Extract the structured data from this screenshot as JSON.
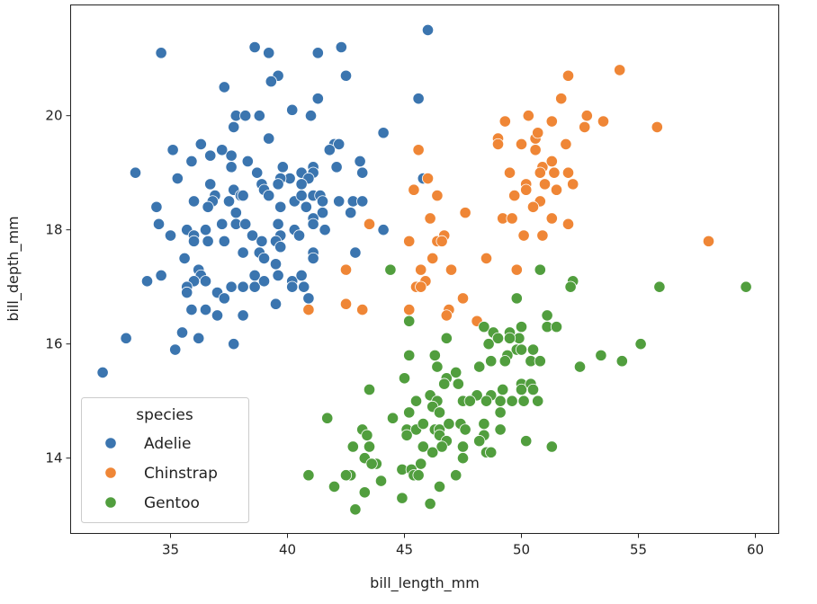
{
  "chart_data": {
    "type": "scatter",
    "title": "",
    "xlabel": "bill_length_mm",
    "ylabel": "bill_depth_mm",
    "xlim": [
      30.73,
      61.0
    ],
    "ylim": [
      12.68,
      21.94
    ],
    "xticks": [
      35,
      40,
      45,
      50,
      55,
      60
    ],
    "yticks": [
      14,
      16,
      18,
      20
    ],
    "grid": false,
    "legend": {
      "title": "species",
      "placement": "bottom-left"
    },
    "series": [
      {
        "name": "Adelie",
        "color": "#3b75af",
        "points": [
          [
            34.6,
            21.1
          ],
          [
            38.6,
            21.2
          ],
          [
            39.2,
            21.1
          ],
          [
            41.3,
            21.1
          ],
          [
            42.3,
            21.2
          ],
          [
            39.6,
            20.7
          ],
          [
            39.3,
            20.6
          ],
          [
            42.5,
            20.7
          ],
          [
            37.3,
            20.5
          ],
          [
            41.3,
            20.3
          ],
          [
            37.8,
            20.0
          ],
          [
            38.2,
            20.0
          ],
          [
            38.8,
            20.0
          ],
          [
            40.2,
            20.1
          ],
          [
            41.0,
            20.0
          ],
          [
            37.7,
            19.8
          ],
          [
            44.1,
            19.7
          ],
          [
            39.2,
            19.6
          ],
          [
            35.1,
            19.4
          ],
          [
            36.3,
            19.5
          ],
          [
            37.2,
            19.4
          ],
          [
            37.6,
            19.3
          ],
          [
            36.7,
            19.3
          ],
          [
            35.9,
            19.2
          ],
          [
            38.3,
            19.2
          ],
          [
            37.6,
            19.1
          ],
          [
            42.0,
            19.5
          ],
          [
            42.2,
            19.5
          ],
          [
            41.8,
            19.4
          ],
          [
            43.1,
            19.2
          ],
          [
            43.2,
            19.0
          ],
          [
            42.1,
            19.1
          ],
          [
            33.5,
            19.0
          ],
          [
            35.3,
            18.9
          ],
          [
            38.7,
            19.0
          ],
          [
            39.8,
            19.1
          ],
          [
            41.1,
            19.1
          ],
          [
            40.6,
            19.0
          ],
          [
            40.1,
            18.9
          ],
          [
            39.7,
            18.9
          ],
          [
            41.1,
            19.0
          ],
          [
            40.9,
            18.9
          ],
          [
            40.6,
            18.8
          ],
          [
            36.7,
            18.8
          ],
          [
            38.9,
            18.8
          ],
          [
            39.0,
            18.7
          ],
          [
            39.2,
            18.6
          ],
          [
            39.6,
            18.8
          ],
          [
            37.7,
            18.7
          ],
          [
            38.0,
            18.6
          ],
          [
            38.1,
            18.6
          ],
          [
            36.9,
            18.6
          ],
          [
            36.8,
            18.5
          ],
          [
            36.6,
            18.4
          ],
          [
            36.0,
            18.5
          ],
          [
            37.5,
            18.5
          ],
          [
            34.4,
            18.4
          ],
          [
            37.8,
            18.3
          ],
          [
            39.7,
            18.4
          ],
          [
            40.3,
            18.5
          ],
          [
            40.6,
            18.6
          ],
          [
            41.1,
            18.6
          ],
          [
            41.4,
            18.6
          ],
          [
            41.5,
            18.5
          ],
          [
            40.8,
            18.4
          ],
          [
            41.5,
            18.3
          ],
          [
            42.2,
            18.5
          ],
          [
            42.8,
            18.5
          ],
          [
            43.2,
            18.5
          ],
          [
            42.7,
            18.3
          ],
          [
            41.1,
            18.2
          ],
          [
            41.1,
            18.1
          ],
          [
            44.1,
            18.0
          ],
          [
            34.5,
            18.1
          ],
          [
            35.7,
            18.0
          ],
          [
            36.0,
            17.9
          ],
          [
            36.0,
            17.8
          ],
          [
            36.5,
            18.0
          ],
          [
            36.6,
            17.8
          ],
          [
            37.2,
            18.1
          ],
          [
            37.3,
            17.8
          ],
          [
            35.0,
            17.9
          ],
          [
            37.8,
            18.1
          ],
          [
            38.2,
            18.1
          ],
          [
            38.5,
            17.9
          ],
          [
            38.9,
            17.8
          ],
          [
            39.6,
            18.1
          ],
          [
            39.7,
            17.9
          ],
          [
            39.5,
            17.8
          ],
          [
            39.7,
            17.7
          ],
          [
            40.3,
            18.0
          ],
          [
            40.5,
            17.9
          ],
          [
            41.6,
            18.0
          ],
          [
            38.1,
            17.6
          ],
          [
            38.8,
            17.6
          ],
          [
            39.0,
            17.5
          ],
          [
            39.5,
            17.4
          ],
          [
            41.1,
            17.6
          ],
          [
            41.1,
            17.5
          ],
          [
            42.9,
            17.6
          ],
          [
            35.6,
            17.5
          ],
          [
            36.2,
            17.3
          ],
          [
            36.3,
            17.2
          ],
          [
            36.0,
            17.1
          ],
          [
            36.5,
            17.1
          ],
          [
            35.7,
            17.0
          ],
          [
            35.7,
            16.9
          ],
          [
            34.0,
            17.1
          ],
          [
            34.6,
            17.2
          ],
          [
            37.0,
            16.9
          ],
          [
            37.3,
            16.8
          ],
          [
            37.6,
            17.0
          ],
          [
            38.1,
            17.0
          ],
          [
            38.6,
            17.0
          ],
          [
            38.6,
            17.2
          ],
          [
            39.0,
            17.1
          ],
          [
            39.6,
            17.2
          ],
          [
            40.2,
            17.1
          ],
          [
            40.2,
            17.0
          ],
          [
            40.6,
            17.2
          ],
          [
            40.7,
            17.0
          ],
          [
            40.9,
            16.8
          ],
          [
            39.5,
            16.7
          ],
          [
            35.9,
            16.6
          ],
          [
            36.5,
            16.6
          ],
          [
            37.0,
            16.5
          ],
          [
            38.1,
            16.5
          ],
          [
            33.1,
            16.1
          ],
          [
            35.5,
            16.2
          ],
          [
            36.2,
            16.1
          ],
          [
            35.2,
            15.9
          ],
          [
            37.7,
            16.0
          ],
          [
            32.1,
            15.5
          ],
          [
            46.0,
            21.5
          ],
          [
            45.6,
            20.3
          ],
          [
            45.8,
            18.9
          ]
        ]
      },
      {
        "name": "Chinstrap",
        "color": "#ef8636",
        "points": [
          [
            54.2,
            20.8
          ],
          [
            52.0,
            20.7
          ],
          [
            51.7,
            20.3
          ],
          [
            52.8,
            20.0
          ],
          [
            53.5,
            19.9
          ],
          [
            52.7,
            19.8
          ],
          [
            55.8,
            19.8
          ],
          [
            49.3,
            19.9
          ],
          [
            50.3,
            20.0
          ],
          [
            51.3,
            19.9
          ],
          [
            49.0,
            19.6
          ],
          [
            49.0,
            19.5
          ],
          [
            50.0,
            19.5
          ],
          [
            50.6,
            19.6
          ],
          [
            50.7,
            19.7
          ],
          [
            50.6,
            19.4
          ],
          [
            51.9,
            19.5
          ],
          [
            45.6,
            19.4
          ],
          [
            49.5,
            19.0
          ],
          [
            50.9,
            19.1
          ],
          [
            51.3,
            19.2
          ],
          [
            50.8,
            19.0
          ],
          [
            51.4,
            19.0
          ],
          [
            52.0,
            19.0
          ],
          [
            50.2,
            18.8
          ],
          [
            50.2,
            18.7
          ],
          [
            51.0,
            18.8
          ],
          [
            51.5,
            18.7
          ],
          [
            52.2,
            18.8
          ],
          [
            49.7,
            18.6
          ],
          [
            50.8,
            18.5
          ],
          [
            50.5,
            18.4
          ],
          [
            46.0,
            18.9
          ],
          [
            45.4,
            18.7
          ],
          [
            46.4,
            18.6
          ],
          [
            47.6,
            18.3
          ],
          [
            46.1,
            18.2
          ],
          [
            49.2,
            18.2
          ],
          [
            49.6,
            18.2
          ],
          [
            51.3,
            18.2
          ],
          [
            52.0,
            18.1
          ],
          [
            50.1,
            17.9
          ],
          [
            50.9,
            17.9
          ],
          [
            58.0,
            17.8
          ],
          [
            43.5,
            18.1
          ],
          [
            45.2,
            17.8
          ],
          [
            46.4,
            17.8
          ],
          [
            46.7,
            17.9
          ],
          [
            46.6,
            17.8
          ],
          [
            46.2,
            17.5
          ],
          [
            48.5,
            17.5
          ],
          [
            42.5,
            17.3
          ],
          [
            45.7,
            17.3
          ],
          [
            47.0,
            17.3
          ],
          [
            49.8,
            17.3
          ],
          [
            45.9,
            17.1
          ],
          [
            45.5,
            17.0
          ],
          [
            45.7,
            17.0
          ],
          [
            47.5,
            16.8
          ],
          [
            46.9,
            16.6
          ],
          [
            46.8,
            16.5
          ],
          [
            48.1,
            16.4
          ],
          [
            40.9,
            16.6
          ],
          [
            42.5,
            16.7
          ],
          [
            43.2,
            16.6
          ],
          [
            45.2,
            16.6
          ]
        ]
      },
      {
        "name": "Gentoo",
        "color": "#519e3e",
        "points": [
          [
            44.4,
            17.3
          ],
          [
            50.8,
            17.3
          ],
          [
            52.2,
            17.1
          ],
          [
            52.1,
            17.0
          ],
          [
            55.9,
            17.0
          ],
          [
            59.6,
            17.0
          ],
          [
            49.8,
            16.8
          ],
          [
            45.2,
            16.4
          ],
          [
            51.1,
            16.5
          ],
          [
            51.1,
            16.3
          ],
          [
            51.5,
            16.3
          ],
          [
            48.4,
            16.3
          ],
          [
            48.8,
            16.2
          ],
          [
            49.5,
            16.2
          ],
          [
            50.0,
            16.3
          ],
          [
            49.9,
            16.1
          ],
          [
            49.5,
            16.1
          ],
          [
            49.0,
            16.1
          ],
          [
            48.6,
            16.0
          ],
          [
            46.8,
            16.1
          ],
          [
            55.1,
            16.0
          ],
          [
            50.5,
            15.9
          ],
          [
            49.8,
            15.9
          ],
          [
            50.0,
            15.9
          ],
          [
            49.4,
            15.8
          ],
          [
            49.3,
            15.7
          ],
          [
            48.7,
            15.7
          ],
          [
            50.4,
            15.7
          ],
          [
            50.8,
            15.7
          ],
          [
            48.2,
            15.6
          ],
          [
            45.2,
            15.8
          ],
          [
            46.3,
            15.8
          ],
          [
            46.4,
            15.6
          ],
          [
            53.4,
            15.8
          ],
          [
            54.3,
            15.7
          ],
          [
            52.5,
            15.6
          ],
          [
            45.0,
            15.4
          ],
          [
            46.8,
            15.4
          ],
          [
            46.7,
            15.3
          ],
          [
            47.2,
            15.5
          ],
          [
            47.3,
            15.3
          ],
          [
            43.5,
            15.2
          ],
          [
            50.0,
            15.3
          ],
          [
            50.0,
            15.2
          ],
          [
            50.4,
            15.3
          ],
          [
            50.5,
            15.2
          ],
          [
            49.2,
            15.2
          ],
          [
            48.7,
            15.1
          ],
          [
            48.1,
            15.1
          ],
          [
            48.5,
            15.0
          ],
          [
            49.1,
            15.0
          ],
          [
            49.6,
            15.0
          ],
          [
            50.1,
            15.0
          ],
          [
            50.7,
            15.0
          ],
          [
            47.5,
            15.0
          ],
          [
            47.8,
            15.0
          ],
          [
            46.1,
            15.1
          ],
          [
            46.4,
            15.0
          ],
          [
            45.5,
            15.0
          ],
          [
            46.2,
            14.9
          ],
          [
            46.5,
            14.8
          ],
          [
            45.2,
            14.8
          ],
          [
            44.5,
            14.7
          ],
          [
            49.1,
            14.8
          ],
          [
            41.7,
            14.7
          ],
          [
            43.2,
            14.5
          ],
          [
            43.4,
            14.4
          ],
          [
            42.8,
            14.2
          ],
          [
            43.5,
            14.2
          ],
          [
            43.3,
            14.0
          ],
          [
            43.8,
            13.9
          ],
          [
            43.6,
            13.9
          ],
          [
            45.1,
            14.5
          ],
          [
            45.5,
            14.5
          ],
          [
            45.8,
            14.6
          ],
          [
            45.1,
            14.4
          ],
          [
            46.3,
            14.5
          ],
          [
            46.5,
            14.5
          ],
          [
            46.5,
            14.4
          ],
          [
            46.9,
            14.6
          ],
          [
            47.4,
            14.6
          ],
          [
            47.6,
            14.5
          ],
          [
            48.4,
            14.6
          ],
          [
            48.4,
            14.4
          ],
          [
            48.2,
            14.3
          ],
          [
            49.1,
            14.5
          ],
          [
            46.8,
            14.3
          ],
          [
            46.6,
            14.2
          ],
          [
            45.8,
            14.2
          ],
          [
            46.2,
            14.1
          ],
          [
            47.5,
            14.2
          ],
          [
            47.5,
            14.0
          ],
          [
            48.5,
            14.1
          ],
          [
            48.7,
            14.1
          ],
          [
            50.2,
            14.3
          ],
          [
            51.3,
            14.2
          ],
          [
            44.9,
            13.8
          ],
          [
            45.3,
            13.8
          ],
          [
            45.4,
            13.7
          ],
          [
            45.6,
            13.7
          ],
          [
            45.7,
            13.9
          ],
          [
            47.2,
            13.7
          ],
          [
            40.9,
            13.7
          ],
          [
            42.7,
            13.7
          ],
          [
            42.5,
            13.7
          ],
          [
            42.0,
            13.5
          ],
          [
            43.3,
            13.4
          ],
          [
            44.0,
            13.6
          ],
          [
            44.9,
            13.3
          ],
          [
            46.1,
            13.2
          ],
          [
            46.5,
            13.5
          ],
          [
            42.9,
            13.1
          ]
        ]
      }
    ]
  }
}
